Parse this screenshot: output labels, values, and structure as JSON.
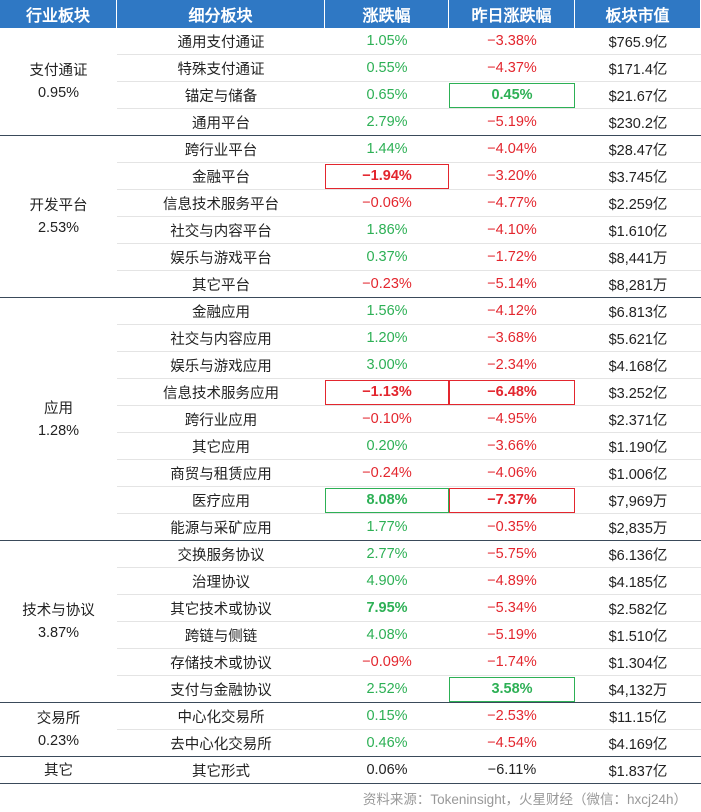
{
  "table": {
    "header": [
      "行业板块",
      "细分板块",
      "涨跌幅",
      "昨日涨跌幅",
      "板块市值"
    ],
    "groups": [
      {
        "name": "支付通证",
        "change": "0.95%",
        "rows": [
          {
            "name": "通用支付通证",
            "change": "1.05%",
            "prev": "−3.38%",
            "cap": "$765.9亿"
          },
          {
            "name": "特殊支付通证",
            "change": "0.55%",
            "prev": "−4.37%",
            "cap": "$171.4亿"
          },
          {
            "name": "锚定与储备",
            "change": "0.65%",
            "prev": "0.45%",
            "cap": "$21.67亿",
            "highlight": {
              "prev": "box"
            }
          },
          {
            "name": "通用平台",
            "change": "2.79%",
            "prev": "−5.19%",
            "cap": "$230.2亿"
          }
        ]
      },
      {
        "name": "开发平台",
        "change": "2.53%",
        "rows": [
          {
            "name": "跨行业平台",
            "change": "1.44%",
            "prev": "−4.04%",
            "cap": "$28.47亿"
          },
          {
            "name": "金融平台",
            "change": "−1.94%",
            "prev": "−3.20%",
            "cap": "$3.745亿",
            "highlight": {
              "change": "box"
            }
          },
          {
            "name": "信息技术服务平台",
            "change": "−0.06%",
            "prev": "−4.77%",
            "cap": "$2.259亿"
          },
          {
            "name": "社交与内容平台",
            "change": "1.86%",
            "prev": "−4.10%",
            "cap": "$1.610亿"
          },
          {
            "name": "娱乐与游戏平台",
            "change": "0.37%",
            "prev": "−1.72%",
            "cap": "$8,441万"
          },
          {
            "name": "其它平台",
            "change": "−0.23%",
            "prev": "−5.14%",
            "cap": "$8,281万"
          }
        ]
      },
      {
        "name": "应用",
        "change": "1.28%",
        "rows": [
          {
            "name": "金融应用",
            "change": "1.56%",
            "prev": "−4.12%",
            "cap": "$6.813亿"
          },
          {
            "name": "社交与内容应用",
            "change": "1.20%",
            "prev": "−3.68%",
            "cap": "$5.621亿"
          },
          {
            "name": "娱乐与游戏应用",
            "change": "3.00%",
            "prev": "−2.34%",
            "cap": "$4.168亿"
          },
          {
            "name": "信息技术服务应用",
            "change": "−1.13%",
            "prev": "−6.48%",
            "cap": "$3.252亿",
            "highlight": {
              "change": "box",
              "prev": "box"
            }
          },
          {
            "name": "跨行业应用",
            "change": "−0.10%",
            "prev": "−4.95%",
            "cap": "$2.371亿"
          },
          {
            "name": "其它应用",
            "change": "0.20%",
            "prev": "−3.66%",
            "cap": "$1.190亿"
          },
          {
            "name": "商贸与租赁应用",
            "change": "−0.24%",
            "prev": "−4.06%",
            "cap": "$1.006亿"
          },
          {
            "name": "医疗应用",
            "change": "8.08%",
            "prev": "−7.37%",
            "cap": "$7,969万",
            "highlight": {
              "change": "box",
              "prev": "box"
            }
          },
          {
            "name": "能源与采矿应用",
            "change": "1.77%",
            "prev": "−0.35%",
            "cap": "$2,835万"
          }
        ]
      },
      {
        "name": "技术与协议",
        "change": "3.87%",
        "rows": [
          {
            "name": "交换服务协议",
            "change": "2.77%",
            "prev": "−5.75%",
            "cap": "$6.136亿"
          },
          {
            "name": "治理协议",
            "change": "4.90%",
            "prev": "−4.89%",
            "cap": "$4.185亿"
          },
          {
            "name": "其它技术或协议",
            "change": "7.95%",
            "prev": "−5.34%",
            "cap": "$2.582亿",
            "highlight": {
              "change": "bold"
            }
          },
          {
            "name": "跨链与侧链",
            "change": "4.08%",
            "prev": "−5.19%",
            "cap": "$1.510亿"
          },
          {
            "name": "存储技术或协议",
            "change": "−0.09%",
            "prev": "−1.74%",
            "cap": "$1.304亿"
          },
          {
            "name": "支付与金融协议",
            "change": "2.52%",
            "prev": "3.58%",
            "cap": "$4,132万",
            "highlight": {
              "prev": "box"
            }
          }
        ]
      },
      {
        "name": "交易所",
        "change": "0.23%",
        "rows": [
          {
            "name": "中心化交易所",
            "change": "0.15%",
            "prev": "−2.53%",
            "cap": "$11.15亿"
          },
          {
            "name": "去中心化交易所",
            "change": "0.46%",
            "prev": "−4.54%",
            "cap": "$4.169亿"
          }
        ]
      },
      {
        "name": "其它",
        "neutral": true,
        "rows": [
          {
            "name": "其它形式",
            "change": "0.06%",
            "prev": "−6.11%",
            "cap": "$1.837亿"
          }
        ]
      }
    ],
    "source": "资料来源：Tokeninsight，火星财经（微信：hxcj24h）"
  }
}
